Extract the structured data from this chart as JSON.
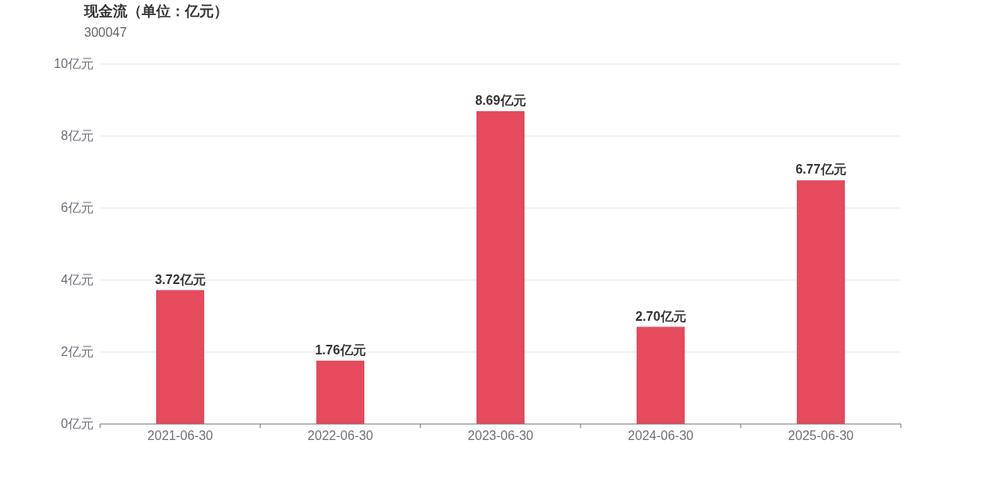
{
  "chart_data": {
    "type": "bar",
    "title": "现金流（单位：亿元）",
    "subtitle": "300047",
    "categories": [
      "2021-06-30",
      "2022-06-30",
      "2023-06-30",
      "2024-06-30",
      "2025-06-30"
    ],
    "values": [
      3.72,
      1.76,
      8.69,
      2.7,
      6.77
    ],
    "value_labels": [
      "3.72亿元",
      "1.76亿元",
      "8.69亿元",
      "2.70亿元",
      "6.77亿元"
    ],
    "color": "#e54a5d",
    "ylim": [
      0,
      10
    ],
    "yticks": [
      {
        "value": 0,
        "label": "0亿元"
      },
      {
        "value": 2,
        "label": "2亿元"
      },
      {
        "value": 4,
        "label": "4亿元"
      },
      {
        "value": 6,
        "label": "6亿元"
      },
      {
        "value": 8,
        "label": "8亿元"
      },
      {
        "value": 10,
        "label": "10亿元"
      }
    ],
    "grid": "y"
  }
}
